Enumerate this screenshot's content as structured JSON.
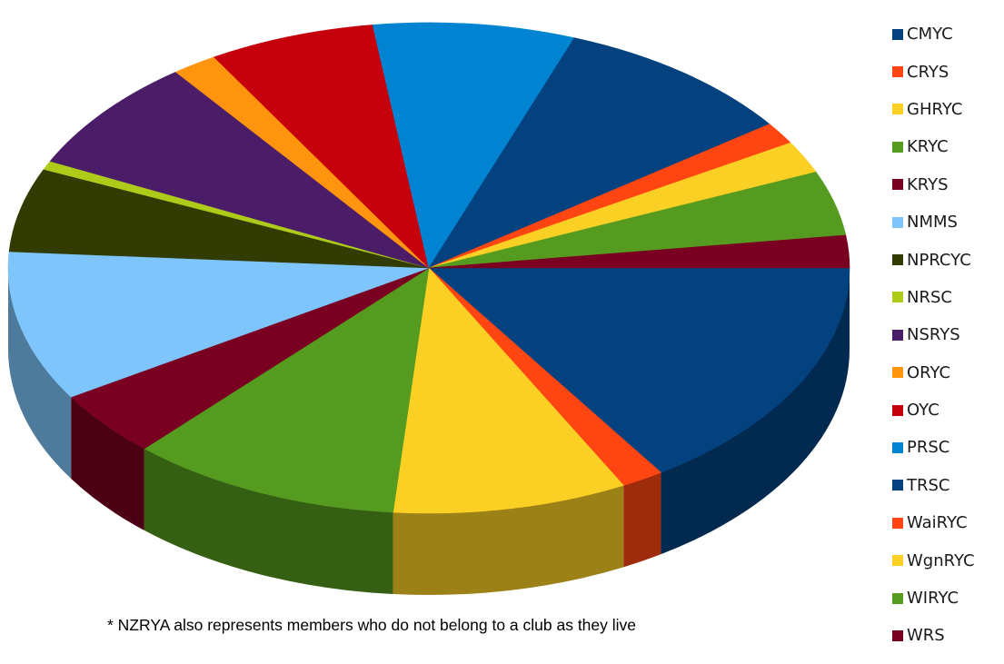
{
  "chart_data": {
    "type": "pie",
    "style": "3d",
    "legend_position": "right",
    "start_angle_deg": 0,
    "direction": "clockwise",
    "order_note": "segments listed clockwise starting at the 3 o'clock position",
    "segments": [
      {
        "label": "TRSC",
        "value": 16.2,
        "color": "#03427F"
      },
      {
        "label": "WaiRYC",
        "value": 1.7,
        "color": "#FF4612"
      },
      {
        "label": "WgnRYC",
        "value": 9.3,
        "color": "#FBD024"
      },
      {
        "label": "WIRYC",
        "value": 10.8,
        "color": "#559B1F"
      },
      {
        "label": "WRS",
        "value": 4.5,
        "color": "#7A0021"
      },
      {
        "label": "NMMS",
        "value": 10.2,
        "color": "#7EC5FC"
      },
      {
        "label": "NPRCYC",
        "value": 5.7,
        "color": "#313B02"
      },
      {
        "label": "NRSC",
        "value": 0.6,
        "color": "#AECB1A"
      },
      {
        "label": "NSRYS",
        "value": 7.8,
        "color": "#4B1C68"
      },
      {
        "label": "ORYC",
        "value": 1.8,
        "color": "#FF940F"
      },
      {
        "label": "OYC",
        "value": 6.6,
        "color": "#C5000C"
      },
      {
        "label": "PRSC",
        "value": 8.0,
        "color": "#0084D1"
      },
      {
        "label": "CMYC",
        "value": 9.7,
        "color": "#03427F"
      },
      {
        "label": "CRYS",
        "value": 1.5,
        "color": "#FF4612"
      },
      {
        "label": "GHRYC",
        "value": 2.2,
        "color": "#FBD024"
      },
      {
        "label": "KRYC",
        "value": 4.4,
        "color": "#559B1F"
      },
      {
        "label": "KRYS",
        "value": 2.2,
        "color": "#7A0021"
      }
    ],
    "legend": [
      {
        "label": "CMYC",
        "color": "#03427F"
      },
      {
        "label": "CRYS",
        "color": "#FF4612"
      },
      {
        "label": "GHRYC",
        "color": "#FBD024"
      },
      {
        "label": "KRYC",
        "color": "#559B1F"
      },
      {
        "label": "KRYS",
        "color": "#7A0021"
      },
      {
        "label": "NMMS",
        "color": "#7EC5FC"
      },
      {
        "label": "NPRCYC",
        "color": "#313B02"
      },
      {
        "label": "NRSC",
        "color": "#AECB1A"
      },
      {
        "label": "NSRYS",
        "color": "#4B1C68"
      },
      {
        "label": "ORYC",
        "color": "#FF940F"
      },
      {
        "label": "OYC",
        "color": "#C5000C"
      },
      {
        "label": "PRSC",
        "color": "#0084D1"
      },
      {
        "label": "TRSC",
        "color": "#03427F"
      },
      {
        "label": "WaiRYC",
        "color": "#FF4612"
      },
      {
        "label": "WgnRYC",
        "color": "#FBD024"
      },
      {
        "label": "WIRYC",
        "color": "#559B1F"
      },
      {
        "label": "WRS",
        "color": "#7A0021"
      }
    ],
    "footnote": "* NZRYA also represents members who do not belong to a club as they live"
  }
}
